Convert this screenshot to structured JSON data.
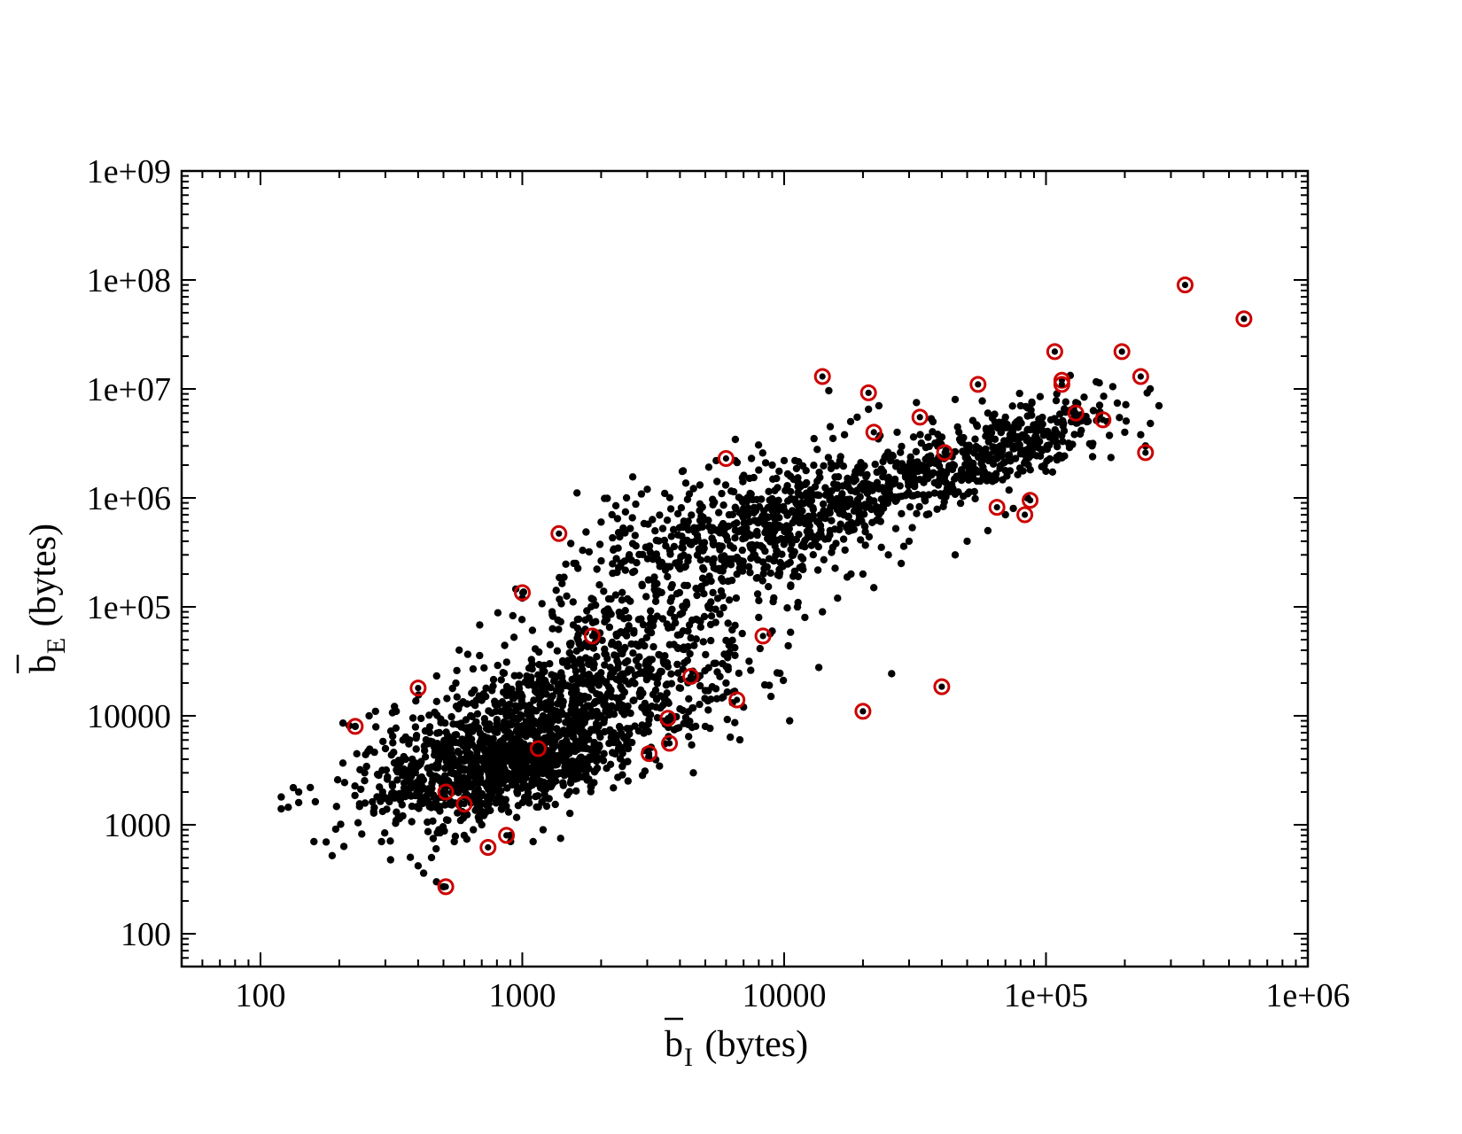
{
  "chart_data": {
    "type": "scatter",
    "title": "",
    "xlabel": {
      "main": "b",
      "sub": "I",
      "rest": " (bytes)",
      "overline": true
    },
    "ylabel": {
      "main": "b",
      "sub": "E",
      "rest": " (bytes)",
      "overline": true
    },
    "x_scale": "log",
    "y_scale": "log",
    "xlim": [
      50,
      1000000
    ],
    "ylim": [
      50,
      1000000000
    ],
    "x_ticks": [
      {
        "value": 100,
        "label": "100"
      },
      {
        "value": 1000,
        "label": "1000"
      },
      {
        "value": 10000,
        "label": "10000"
      },
      {
        "value": 100000,
        "label": "1e+05"
      },
      {
        "value": 1000000,
        "label": "1e+06"
      }
    ],
    "y_ticks": [
      {
        "value": 100,
        "label": "100"
      },
      {
        "value": 1000,
        "label": "1000"
      },
      {
        "value": 10000,
        "label": "10000"
      },
      {
        "value": 100000,
        "label": "1e+05"
      },
      {
        "value": 1000000,
        "label": "1e+06"
      },
      {
        "value": 10000000,
        "label": "1e+07"
      },
      {
        "value": 100000000,
        "label": "1e+08"
      },
      {
        "value": 1000000000,
        "label": "1e+09"
      }
    ],
    "grid": false,
    "legend": "none",
    "colors": {
      "points": "#000000",
      "highlight": "#cc0000",
      "axes": "#000000"
    },
    "series": [
      {
        "marker": "filled-circle",
        "clusters": [
          {
            "cx": 1000,
            "cy": 4000,
            "count": 900,
            "sx": 0.22,
            "sy": 0.25,
            "rho": 0.45
          },
          {
            "cx": 1500,
            "cy": 20000,
            "count": 500,
            "sx": 0.3,
            "sy": 0.4,
            "rho": 0.75
          },
          {
            "cx": 10000,
            "cy": 600000,
            "count": 500,
            "sx": 0.3,
            "sy": 0.35,
            "rho": 0.65
          },
          {
            "cx": 40000,
            "cy": 1800000,
            "count": 350,
            "sx": 0.3,
            "sy": 0.3,
            "rho": 0.8
          },
          {
            "cx": 4000,
            "cy": 300000,
            "count": 250,
            "sx": 0.3,
            "sy": 0.45,
            "rho": 0.6
          },
          {
            "cx": 400,
            "cy": 3000,
            "count": 180,
            "sx": 0.15,
            "sy": 0.35,
            "rho": 0.3
          },
          {
            "cx": 3000,
            "cy": 15000,
            "count": 250,
            "sx": 0.25,
            "sy": 0.3,
            "rho": 0.5
          },
          {
            "cx": 80000,
            "cy": 3000000,
            "count": 150,
            "sx": 0.15,
            "sy": 0.2,
            "rho": 0.5
          }
        ],
        "points": [
          [
            120,
            1800
          ],
          [
            120,
            1400
          ],
          [
            140,
            2000
          ],
          [
            140,
            1600
          ],
          [
            155,
            2200
          ],
          [
            160,
            700
          ],
          [
            230,
            8000
          ],
          [
            240,
            3200
          ],
          [
            250,
            3000
          ],
          [
            260,
            10000
          ],
          [
            275,
            11000
          ],
          [
            280,
            2900
          ],
          [
            290,
            700
          ],
          [
            300,
            5000
          ],
          [
            320,
            6500
          ],
          [
            330,
            11000
          ],
          [
            310,
            1700
          ],
          [
            350,
            6000
          ],
          [
            380,
            4000
          ],
          [
            400,
            420
          ],
          [
            420,
            360
          ],
          [
            450,
            500
          ],
          [
            470,
            300
          ],
          [
            480,
            900
          ],
          [
            500,
            270
          ],
          [
            520,
            1100
          ],
          [
            550,
            700
          ],
          [
            600,
            800
          ],
          [
            650,
            900
          ],
          [
            700,
            1000
          ],
          [
            900,
            800
          ],
          [
            1200,
            900
          ],
          [
            1400,
            750
          ],
          [
            1100,
            700
          ],
          [
            4500,
            3000
          ],
          [
            5000,
            8000
          ],
          [
            6000,
            20000
          ],
          [
            7000,
            12000
          ],
          [
            8000,
            80000
          ],
          [
            9000,
            60000
          ],
          [
            10500,
            9000
          ],
          [
            13000,
            3500000
          ],
          [
            15000,
            4500000
          ],
          [
            17000,
            3800000
          ],
          [
            19000,
            5500000
          ],
          [
            21000,
            6500000
          ],
          [
            23000,
            7000000
          ],
          [
            27000,
            4000000
          ],
          [
            32000,
            7500000
          ],
          [
            37000,
            5000000
          ],
          [
            45000,
            8000000
          ],
          [
            60000,
            6000000
          ],
          [
            70000,
            5500000
          ],
          [
            80000,
            7000000
          ],
          [
            95000,
            8500000
          ],
          [
            110000,
            9000000
          ],
          [
            125000,
            5000000
          ],
          [
            130000,
            7500000
          ],
          [
            150000,
            3000000
          ],
          [
            160000,
            5800000
          ],
          [
            200000,
            4000000
          ],
          [
            230000,
            3800000
          ],
          [
            240000,
            3000000
          ],
          [
            270000,
            7000000
          ],
          [
            250000,
            10000000
          ],
          [
            180000,
            10500000
          ],
          [
            60000,
            500000
          ],
          [
            70000,
            700000
          ],
          [
            75000,
            800000
          ],
          [
            85000,
            1000000
          ],
          [
            50000,
            400000
          ],
          [
            45000,
            300000
          ],
          [
            35000,
            700000
          ],
          [
            30000,
            400000
          ],
          [
            25000,
            300000
          ],
          [
            20000,
            200000
          ],
          [
            22000,
            150000
          ],
          [
            28000,
            250000
          ],
          [
            14000,
            90000
          ],
          [
            12000,
            80000
          ],
          [
            16000,
            120000
          ],
          [
            18000,
            200000
          ],
          [
            9500,
            200000
          ],
          [
            7000,
            800000
          ],
          [
            5500,
            2200000
          ],
          [
            7500,
            2300000
          ],
          [
            8500,
            2100000
          ],
          [
            9000,
            2000000
          ],
          [
            10000,
            2200000
          ],
          [
            11000,
            2200000
          ],
          [
            6500,
            2200000
          ],
          [
            3500,
            1100000
          ],
          [
            3000,
            1200000
          ],
          [
            2500,
            1000000
          ],
          [
            2000,
            600000
          ],
          [
            2200,
            700000
          ],
          [
            1700,
            330000
          ],
          [
            1600,
            250000
          ],
          [
            1800,
            320000
          ],
          [
            1300,
            90000
          ],
          [
            1000,
            120000
          ]
        ]
      },
      {
        "marker": "ringed-circle",
        "points": [
          [
            340000,
            90000000
          ],
          [
            570000,
            44000000
          ],
          [
            108000,
            22000000
          ],
          [
            195000,
            22000000
          ],
          [
            14000,
            13000000
          ],
          [
            230000,
            13000000
          ],
          [
            115000,
            12000000
          ],
          [
            115000,
            11000000
          ],
          [
            55000,
            11000000
          ],
          [
            21000,
            9200000
          ],
          [
            33000,
            5500000
          ],
          [
            130000,
            6000000
          ],
          [
            165000,
            5200000
          ],
          [
            22000,
            4000000
          ],
          [
            41000,
            2600000
          ],
          [
            240000,
            2600000
          ],
          [
            6000,
            2300000
          ],
          [
            87000,
            950000
          ],
          [
            65000,
            820000
          ],
          [
            83000,
            700000
          ],
          [
            1380,
            470000
          ],
          [
            1000,
            135000
          ],
          [
            8300,
            54000
          ],
          [
            1850,
            54000
          ],
          [
            4400,
            23000
          ],
          [
            400,
            18000
          ],
          [
            40000,
            18500
          ],
          [
            6600,
            14000
          ],
          [
            20000,
            11000
          ],
          [
            3600,
            9500
          ],
          [
            230,
            8000
          ],
          [
            1150,
            5000
          ],
          [
            3650,
            5600
          ],
          [
            3050,
            4500
          ],
          [
            510,
            2000
          ],
          [
            600,
            1550
          ],
          [
            870,
            800
          ],
          [
            740,
            620
          ],
          [
            510,
            270
          ]
        ]
      }
    ]
  }
}
